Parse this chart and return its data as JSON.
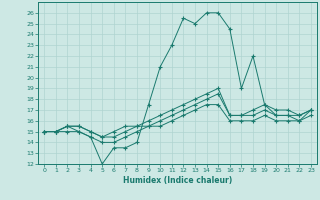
{
  "title": "",
  "xlabel": "Humidex (Indice chaleur)",
  "ylabel": "",
  "background_color": "#cde8e4",
  "line_color": "#1a7a6e",
  "grid_color": "#b0d4d0",
  "xlim": [
    -0.5,
    23.5
  ],
  "ylim": [
    12,
    27
  ],
  "xticks": [
    0,
    1,
    2,
    3,
    4,
    5,
    6,
    7,
    8,
    9,
    10,
    11,
    12,
    13,
    14,
    15,
    16,
    17,
    18,
    19,
    20,
    21,
    22,
    23
  ],
  "yticks": [
    12,
    13,
    14,
    15,
    16,
    17,
    18,
    19,
    20,
    21,
    22,
    23,
    24,
    25,
    26
  ],
  "series": [
    [
      15.0,
      15.0,
      15.5,
      15.0,
      14.5,
      12.0,
      13.5,
      13.5,
      14.0,
      17.5,
      21.0,
      23.0,
      25.5,
      25.0,
      26.0,
      26.0,
      24.5,
      19.0,
      22.0,
      17.5,
      16.5,
      16.5,
      16.5,
      17.0
    ],
    [
      15.0,
      15.0,
      15.5,
      15.5,
      15.0,
      14.5,
      15.0,
      15.5,
      15.5,
      16.0,
      16.5,
      17.0,
      17.5,
      18.0,
      18.5,
      19.0,
      16.5,
      16.5,
      17.0,
      17.5,
      17.0,
      17.0,
      16.5,
      17.0
    ],
    [
      15.0,
      15.0,
      15.5,
      15.5,
      15.0,
      14.5,
      14.5,
      15.0,
      15.5,
      15.5,
      16.0,
      16.5,
      17.0,
      17.5,
      18.0,
      18.5,
      16.5,
      16.5,
      16.5,
      17.0,
      16.5,
      16.5,
      16.0,
      17.0
    ],
    [
      15.0,
      15.0,
      15.0,
      15.0,
      14.5,
      14.0,
      14.0,
      14.5,
      15.0,
      15.5,
      15.5,
      16.0,
      16.5,
      17.0,
      17.5,
      17.5,
      16.0,
      16.0,
      16.0,
      16.5,
      16.0,
      16.0,
      16.0,
      16.5
    ]
  ]
}
